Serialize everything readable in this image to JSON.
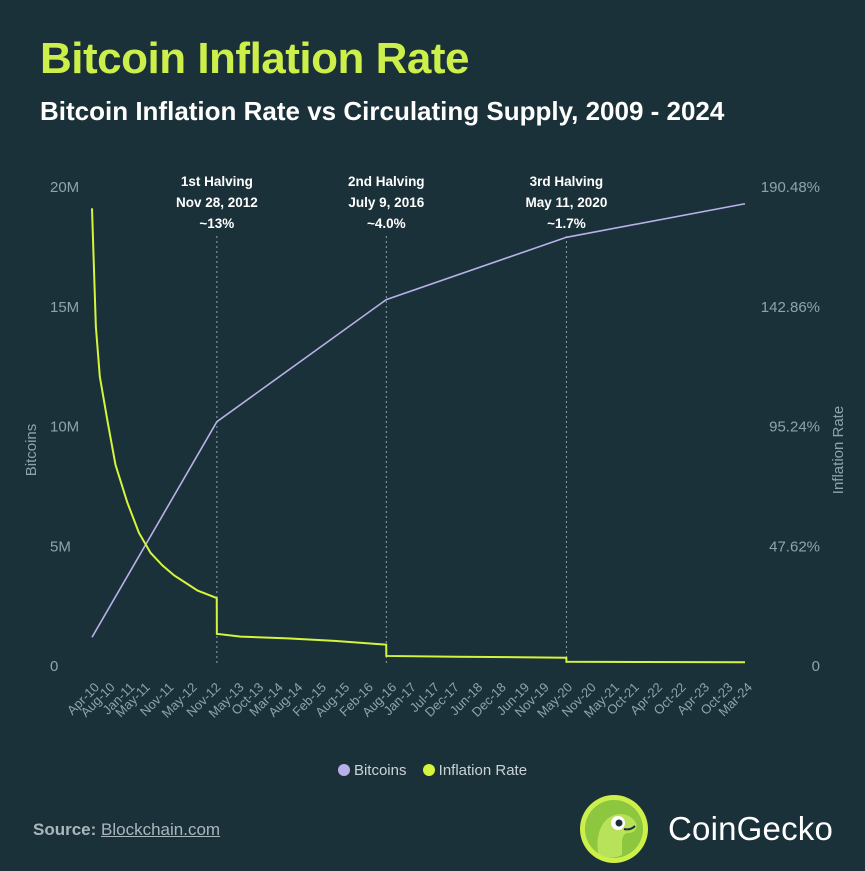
{
  "header": {
    "title": "Bitcoin Inflation Rate",
    "subtitle": "Bitcoin Inflation Rate vs Circulating Supply, 2009 - 2024"
  },
  "colors": {
    "background": "#1b3139",
    "title": "#cdef4a",
    "bitcoins_line": "#b8b0e8",
    "inflation_line": "#d4f53c",
    "guide_line": "#8fa3aa"
  },
  "chart_data": {
    "type": "line",
    "y_left_label": "Bitcoins",
    "y_right_label": "Inflation Rate",
    "y_left_ticks": [
      "20M",
      "15M",
      "10M",
      "5M",
      "0"
    ],
    "y_left_values": [
      20000000,
      15000000,
      10000000,
      5000000,
      0
    ],
    "y_right_ticks": [
      "190.48%",
      "142.86%",
      "95.24%",
      "47.62%",
      "0"
    ],
    "y_right_values": [
      190.48,
      142.86,
      95.24,
      47.62,
      0
    ],
    "x_ticks": [
      "Apr-10",
      "Aug-10",
      "Jan-11",
      "May-11",
      "Nov-11",
      "May-12",
      "Nov-12",
      "May-13",
      "Oct-13",
      "Mar-14",
      "Aug-14",
      "Feb-15",
      "Aug-15",
      "Feb-16",
      "Aug-16",
      "Jan-17",
      "Jul-17",
      "Dec-17",
      "Jun-18",
      "Dec-18",
      "Jun-19",
      "Nov-19",
      "May-20",
      "Nov-20",
      "May-21",
      "Oct-21",
      "Apr-22",
      "Oct-22",
      "Apr-23",
      "Oct-23",
      "Mar-24"
    ],
    "x_tick_dates": [
      "2010-04",
      "2010-08",
      "2011-01",
      "2011-05",
      "2011-11",
      "2012-05",
      "2012-11",
      "2013-05",
      "2013-10",
      "2014-03",
      "2014-08",
      "2015-02",
      "2015-08",
      "2016-02",
      "2016-08",
      "2017-01",
      "2017-07",
      "2017-12",
      "2018-06",
      "2018-12",
      "2019-06",
      "2019-11",
      "2020-05",
      "2020-11",
      "2021-05",
      "2021-10",
      "2022-04",
      "2022-10",
      "2023-04",
      "2023-10",
      "2024-03"
    ],
    "series": [
      {
        "name": "Bitcoins",
        "axis": "left",
        "x": [
          "2010-04",
          "2012-11-28",
          "2016-07-09",
          "2020-05-11",
          "2024-03"
        ],
        "y": [
          1200000,
          10200000,
          15300000,
          17900000,
          19300000
        ]
      },
      {
        "name": "Inflation Rate",
        "axis": "right",
        "x": [
          "2010-04",
          "2010-05",
          "2010-06",
          "2010-08",
          "2010-10",
          "2011-01",
          "2011-04",
          "2011-07",
          "2011-10",
          "2012-01",
          "2012-04",
          "2012-07",
          "2012-11-27",
          "2012-11-28",
          "2013-06",
          "2014-06",
          "2015-06",
          "2016-07-08",
          "2016-07-09",
          "2018-01",
          "2020-05-10",
          "2020-05-11",
          "2022-01",
          "2024-03"
        ],
        "y": [
          182,
          135,
          115,
          97,
          80,
          65,
          53,
          45,
          40,
          36,
          33,
          30,
          27,
          12.8,
          11.7,
          11,
          10,
          8.5,
          4.0,
          3.7,
          3.3,
          1.7,
          1.6,
          1.5
        ]
      }
    ],
    "annotations": [
      {
        "date": "2012-11-28",
        "lines": [
          "1st Halving",
          "Nov 28, 2012",
          "~13%"
        ]
      },
      {
        "date": "2016-07-09",
        "lines": [
          "2nd Halving",
          "July 9, 2016",
          "~4.0%"
        ]
      },
      {
        "date": "2020-05-11",
        "lines": [
          "3rd Halving",
          "May 11, 2020",
          "~1.7%"
        ]
      }
    ],
    "legend": [
      "Bitcoins",
      "Inflation Rate"
    ],
    "legend_position": "bottom"
  },
  "footer": {
    "source_label": "Source:",
    "source_link": "Blockchain.com",
    "brand": "CoinGecko"
  }
}
